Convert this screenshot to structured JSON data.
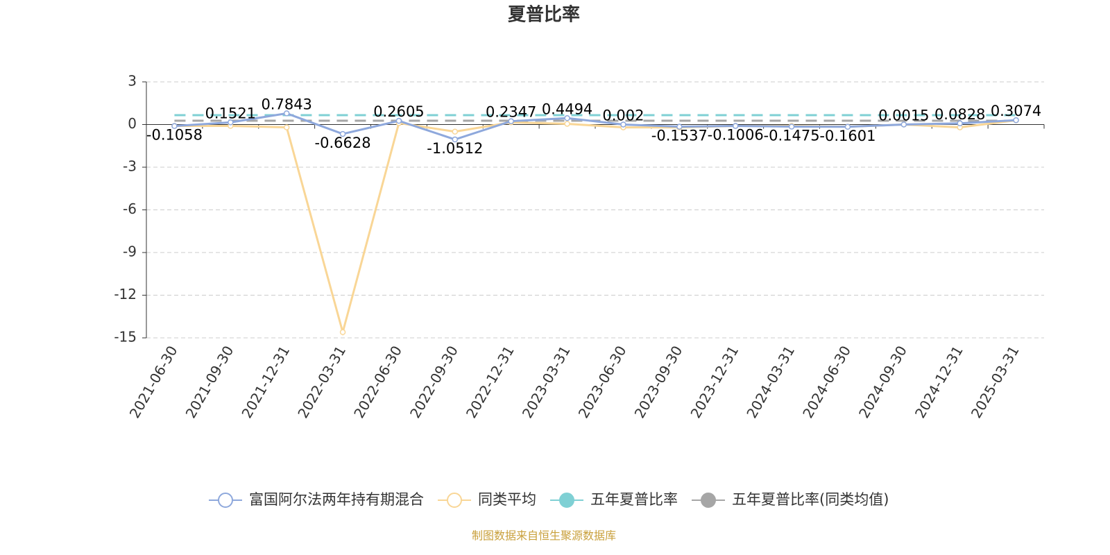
{
  "chart_data": {
    "type": "line",
    "title": "夏普比率",
    "categories": [
      "2021-06-30",
      "2021-09-30",
      "2021-12-31",
      "2022-03-31",
      "2022-06-30",
      "2022-09-30",
      "2022-12-31",
      "2023-03-31",
      "2023-06-30",
      "2023-09-30",
      "2023-12-31",
      "2024-03-31",
      "2024-06-30",
      "2024-09-30",
      "2024-12-31",
      "2025-03-31"
    ],
    "series": [
      {
        "name": "富国阿尔法两年持有期混合",
        "color": "#8ea8dc",
        "style": "solid",
        "legend_marker": "hollow",
        "show_labels": true,
        "values": [
          -0.1058,
          0.1521,
          0.7843,
          -0.6628,
          0.2605,
          -1.0512,
          0.2347,
          0.4494,
          0.002,
          -0.1537,
          -0.1006,
          -0.1475,
          -0.1601,
          0.0015,
          0.0828,
          0.3074
        ]
      },
      {
        "name": "同类平均",
        "color": "#f9d696",
        "style": "solid",
        "legend_marker": "hollow",
        "show_labels": false,
        "values": [
          -0.1,
          -0.1,
          -0.2,
          -14.6,
          0.1,
          -0.5,
          0.15,
          0.05,
          -0.2,
          -0.2,
          -0.1,
          -0.1,
          -0.15,
          0.0,
          -0.2,
          0.3
        ]
      },
      {
        "name": "五年夏普比率",
        "color": "#7fd0d4",
        "style": "dashed",
        "legend_marker": "filled",
        "show_labels": false,
        "values": [
          0.66,
          0.66,
          0.66,
          0.66,
          0.66,
          0.66,
          0.66,
          0.66,
          0.66,
          0.66,
          0.66,
          0.66,
          0.66,
          0.66,
          0.66,
          0.66
        ]
      },
      {
        "name": "五年夏普比率(同类均值)",
        "color": "#a6a6a6",
        "style": "dashed",
        "legend_marker": "filled",
        "show_labels": false,
        "values": [
          0.27,
          0.27,
          0.27,
          0.27,
          0.27,
          0.27,
          0.27,
          0.27,
          0.27,
          0.27,
          0.27,
          0.27,
          0.27,
          0.27,
          0.27,
          0.27
        ]
      }
    ],
    "ylim": [
      -15,
      3
    ],
    "yticks": [
      -15,
      -12,
      -9,
      -6,
      -3,
      0,
      3
    ],
    "grid": true,
    "source": "制图数据来自恒生聚源数据库"
  }
}
